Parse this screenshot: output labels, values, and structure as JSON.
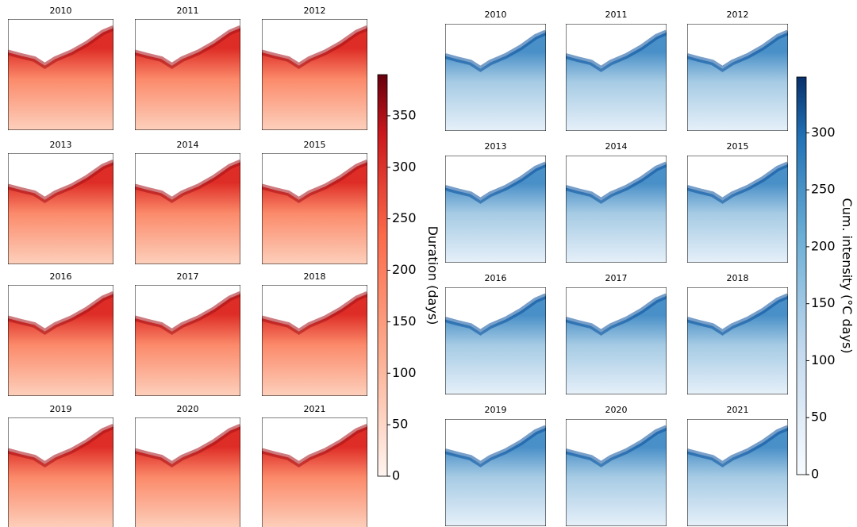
{
  "left": {
    "years": [
      "2010",
      "2011",
      "2012",
      "2013",
      "2014",
      "2015",
      "2016",
      "2017",
      "2018",
      "2019",
      "2020",
      "2021"
    ],
    "colorbar": {
      "label": "Duration (days)",
      "lim": [
        0,
        390
      ],
      "ticks": [
        0,
        50,
        100,
        150,
        200,
        250,
        300,
        350
      ]
    }
  },
  "right": {
    "years": [
      "2010",
      "2011",
      "2012",
      "2013",
      "2014",
      "2015",
      "2016",
      "2017",
      "2018",
      "2019",
      "2020",
      "2021"
    ],
    "colorbar": {
      "label": "Cum. intensity (°C days)",
      "lim": [
        0,
        349
      ],
      "ticks": [
        0,
        50,
        100,
        150,
        200,
        250,
        300
      ]
    }
  }
}
